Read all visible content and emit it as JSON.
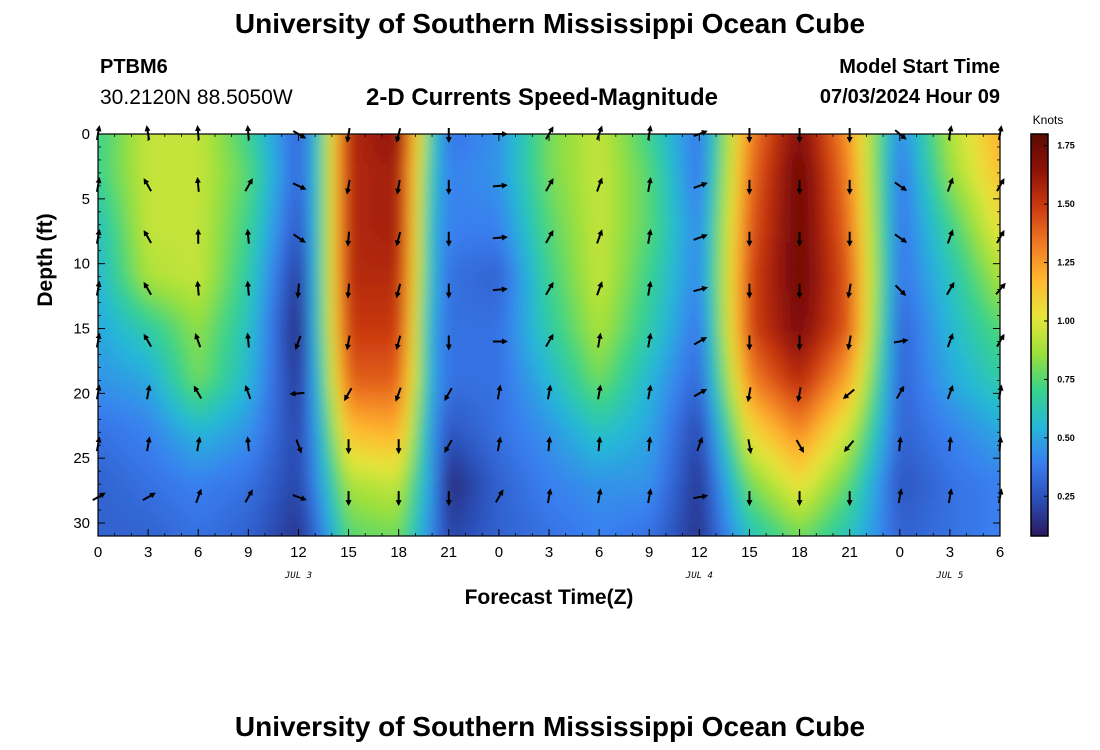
{
  "header": {
    "title": "University of Southern Mississippi Ocean Cube",
    "station_id": "PTBM6",
    "coords": "30.2120N  88.5050W",
    "subtitle": "2-D Currents Speed-Magnitude",
    "model_label": "Model Start Time",
    "model_value": "07/03/2024 Hour 09"
  },
  "footer": {
    "title": "University of Southern Mississippi Ocean Cube"
  },
  "colors": {
    "scale": [
      "#2a1a5e",
      "#2b4fb8",
      "#3a7ef0",
      "#25b8d8",
      "#38d38a",
      "#9be03a",
      "#e6e63a",
      "#ffb830",
      "#f07a22",
      "#cc3a10",
      "#8e1208",
      "#5a0a04"
    ]
  },
  "chart_data": {
    "type": "heatmap",
    "xlabel": "Forecast Time(Z)",
    "ylabel": "Depth (ft)",
    "xlim": [
      0,
      54
    ],
    "ylim": [
      31,
      0
    ],
    "x_ticks": [
      0,
      3,
      6,
      9,
      12,
      15,
      18,
      21,
      24,
      27,
      30,
      33,
      36,
      39,
      42,
      45,
      48,
      51,
      54
    ],
    "x_tick_labels": [
      "0",
      "3",
      "6",
      "9",
      "12",
      "15",
      "18",
      "21",
      "0",
      "3",
      "6",
      "9",
      "12",
      "15",
      "18",
      "21",
      "0",
      "3",
      "6"
    ],
    "y_ticks": [
      0,
      5,
      10,
      15,
      20,
      25,
      30
    ],
    "y_tick_labels": [
      "0",
      "5",
      "10",
      "15",
      "20",
      "25",
      "30"
    ],
    "date_labels": [
      {
        "x": 12,
        "label": "JUL 3"
      },
      {
        "x": 36,
        "label": "JUL 4"
      },
      {
        "x": 51,
        "label": "JUL 5"
      }
    ],
    "colorbar": {
      "title": "Knots",
      "range": [
        0.08,
        1.8
      ],
      "ticks": [
        0.25,
        0.5,
        0.75,
        1.0,
        1.25,
        1.5,
        1.75
      ],
      "tick_labels": [
        "0.25",
        "0.50",
        "0.75",
        "1.00",
        "1.25",
        "1.50",
        "1.75"
      ]
    },
    "time_hours": [
      0,
      3,
      6,
      9,
      12,
      13,
      15,
      18,
      20,
      21,
      24,
      27,
      30,
      33,
      36,
      39,
      42,
      45,
      48,
      51,
      54
    ],
    "depth_ft": [
      0,
      3,
      7,
      11,
      15,
      19,
      23,
      27,
      31
    ],
    "speed_knots": [
      [
        0.7,
        0.95,
        0.95,
        0.7,
        0.3,
        0.55,
        1.55,
        1.65,
        0.65,
        0.35,
        0.45,
        0.8,
        0.95,
        0.7,
        0.35,
        1.3,
        1.7,
        1.25,
        0.4,
        0.9,
        1.2
      ],
      [
        0.7,
        0.95,
        0.95,
        0.75,
        0.3,
        0.55,
        1.55,
        1.6,
        0.6,
        0.4,
        0.45,
        0.8,
        0.95,
        0.75,
        0.35,
        1.35,
        1.75,
        1.3,
        0.35,
        0.85,
        1.15
      ],
      [
        0.6,
        0.95,
        0.95,
        0.7,
        0.25,
        0.55,
        1.55,
        1.6,
        0.55,
        0.4,
        0.4,
        0.75,
        0.95,
        0.75,
        0.4,
        1.4,
        1.75,
        1.35,
        0.35,
        0.7,
        1.05
      ],
      [
        0.55,
        0.9,
        0.95,
        0.65,
        0.15,
        0.55,
        1.55,
        1.55,
        0.55,
        0.35,
        0.3,
        0.7,
        0.95,
        0.7,
        0.4,
        1.45,
        1.75,
        1.4,
        0.35,
        0.6,
        0.9
      ],
      [
        0.5,
        0.65,
        0.85,
        0.6,
        0.1,
        0.55,
        1.5,
        1.5,
        0.5,
        0.35,
        0.35,
        0.65,
        0.9,
        0.65,
        0.35,
        1.45,
        1.7,
        1.4,
        0.3,
        0.55,
        0.75
      ],
      [
        0.45,
        0.5,
        0.8,
        0.55,
        0.15,
        0.5,
        1.4,
        1.4,
        0.5,
        0.35,
        0.35,
        0.55,
        0.8,
        0.55,
        0.3,
        1.3,
        1.55,
        1.2,
        0.3,
        0.5,
        0.65
      ],
      [
        0.35,
        0.4,
        0.55,
        0.45,
        0.2,
        0.45,
        1.15,
        1.2,
        0.45,
        0.25,
        0.35,
        0.45,
        0.6,
        0.5,
        0.2,
        1.05,
        1.3,
        0.95,
        0.3,
        0.4,
        0.5
      ],
      [
        0.3,
        0.35,
        0.4,
        0.35,
        0.2,
        0.4,
        0.9,
        0.95,
        0.45,
        0.12,
        0.3,
        0.4,
        0.45,
        0.45,
        0.15,
        0.8,
        1.05,
        0.75,
        0.25,
        0.35,
        0.4
      ],
      [
        0.3,
        0.3,
        0.35,
        0.3,
        0.15,
        0.3,
        0.75,
        0.8,
        0.4,
        0.2,
        0.3,
        0.35,
        0.4,
        0.35,
        0.15,
        0.6,
        0.8,
        0.6,
        0.3,
        0.35,
        0.4
      ]
    ],
    "vectors": {
      "times": [
        0,
        3,
        6,
        9,
        12,
        15,
        18,
        21,
        24,
        27,
        30,
        33,
        36,
        39,
        42,
        45,
        48,
        51,
        54
      ],
      "depths": [
        0,
        4,
        8,
        12,
        16,
        20,
        24,
        28
      ],
      "direction_deg": [
        [
          10,
          350,
          355,
          355,
          120,
          190,
          195,
          180,
          90,
          30,
          20,
          10,
          70,
          180,
          180,
          180,
          130,
          10,
          10
        ],
        [
          10,
          330,
          355,
          30,
          115,
          190,
          190,
          180,
          85,
          30,
          20,
          10,
          70,
          180,
          180,
          180,
          125,
          20,
          30
        ],
        [
          10,
          330,
          360,
          355,
          125,
          185,
          195,
          180,
          85,
          30,
          20,
          10,
          70,
          180,
          180,
          180,
          125,
          20,
          30
        ],
        [
          10,
          330,
          355,
          355,
          185,
          185,
          195,
          180,
          85,
          30,
          20,
          10,
          75,
          180,
          180,
          190,
          135,
          30,
          40
        ],
        [
          10,
          330,
          340,
          355,
          200,
          190,
          195,
          180,
          90,
          30,
          10,
          10,
          60,
          180,
          180,
          190,
          80,
          20,
          30
        ],
        [
          10,
          10,
          330,
          340,
          265,
          210,
          200,
          210,
          10,
          10,
          10,
          10,
          60,
          190,
          190,
          230,
          30,
          20,
          10
        ],
        [
          10,
          10,
          10,
          355,
          160,
          180,
          180,
          210,
          10,
          5,
          5,
          5,
          20,
          170,
          150,
          220,
          5,
          5,
          5
        ],
        [
          60,
          60,
          20,
          30,
          110,
          180,
          180,
          180,
          30,
          10,
          10,
          10,
          80,
          180,
          180,
          180,
          10,
          10,
          10
        ]
      ]
    }
  }
}
